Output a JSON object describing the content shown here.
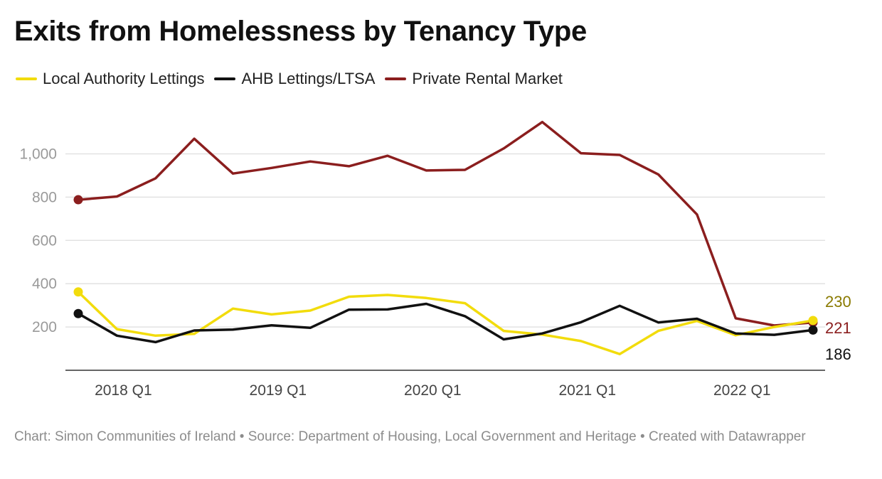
{
  "chart_data": {
    "type": "line",
    "title": "Exits from Homelessness by Tenancy Type",
    "x": [
      "2017 Q4",
      "2018 Q1",
      "2018 Q2",
      "2018 Q3",
      "2018 Q4",
      "2019 Q1",
      "2019 Q2",
      "2019 Q3",
      "2019 Q4",
      "2020 Q1",
      "2020 Q2",
      "2020 Q3",
      "2020 Q4",
      "2021 Q1",
      "2021 Q2",
      "2021 Q3",
      "2021 Q4",
      "2022 Q1",
      "2022 Q2",
      "2022 Q3"
    ],
    "x_tick_labels": [
      "2018 Q1",
      "2019 Q1",
      "2020 Q1",
      "2021 Q1",
      "2022 Q1"
    ],
    "y_ticks": [
      "1,000",
      "800",
      "600",
      "400",
      "200"
    ],
    "y_tick_values": [
      1000,
      800,
      600,
      400,
      200
    ],
    "ylim": [
      0,
      1100
    ],
    "grid": true,
    "legend_position": "top-left",
    "series": [
      {
        "name": "Local Authority Lettings",
        "color": "#f2dc0c",
        "values": [
          362,
          190,
          160,
          168,
          285,
          258,
          276,
          340,
          348,
          334,
          310,
          182,
          165,
          135,
          75,
          182,
          228,
          162,
          200,
          230
        ],
        "end_label": "230",
        "end_label_color": "#8a7a00"
      },
      {
        "name": "AHB Lettings/LTSA",
        "color": "#111111",
        "values": [
          262,
          160,
          130,
          184,
          188,
          208,
          196,
          280,
          281,
          307,
          250,
          143,
          170,
          222,
          298,
          221,
          238,
          170,
          164,
          186
        ],
        "end_label": "186",
        "end_label_color": "#111111"
      },
      {
        "name": "Private Rental Market",
        "color": "#8b1e1e",
        "values": [
          788,
          803,
          887,
          1070,
          909,
          935,
          965,
          943,
          991,
          923,
          926,
          1025,
          1147,
          1003,
          995,
          905,
          720,
          240,
          207,
          221
        ],
        "end_label": "221",
        "end_label_color": "#8b1e1e"
      }
    ]
  },
  "footer": {
    "text": "Chart: Simon Communities of Ireland • Source: Department of Housing, Local Government and Heritage • Created with Datawrapper"
  }
}
